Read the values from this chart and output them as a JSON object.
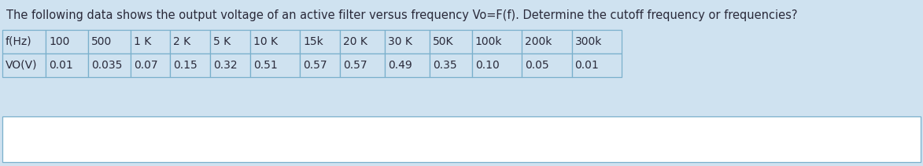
{
  "title": "The following data shows the output voltage of an active filter versus frequency Vo=F(f). Determine the cutoff frequency or frequencies?",
  "background_color": "#cfe2f0",
  "table_background": "#cfe2f0",
  "bottom_box_background": "#ffffff",
  "row1_label": "f(Hz)",
  "row2_label": "VO(V)",
  "freq_labels": [
    "100",
    "500",
    "1 K",
    "2 K",
    "5 K",
    "10 K",
    "15k",
    "20 K",
    "30 K",
    "50K",
    "100k",
    "200k",
    "300k"
  ],
  "vo_values": [
    "0.01",
    "0.035",
    "0.07",
    "0.15",
    "0.32",
    "0.51",
    "0.57",
    "0.57",
    "0.49",
    "0.35",
    "0.10",
    "0.05",
    "0.01"
  ],
  "title_fontsize": 10.5,
  "table_fontsize": 10.0,
  "table_border_color": "#7ab0cc",
  "text_color": "#2a2a3a"
}
